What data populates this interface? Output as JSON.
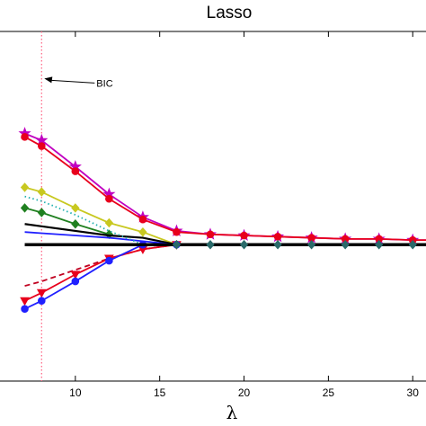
{
  "chart_data": {
    "type": "line",
    "title": "Lasso",
    "xlabel": "λ",
    "ylabel": "",
    "xlim": [
      5,
      31
    ],
    "ylim": [
      -1.25,
      1.8
    ],
    "xticks": [
      10,
      15,
      20,
      25,
      30
    ],
    "xtick_labels": [
      "10",
      "15",
      "20",
      "25",
      "30"
    ],
    "grid": false,
    "annotations": [
      {
        "text": "BIC",
        "x": 8,
        "y": 1.35,
        "arrow": true
      }
    ],
    "vline": {
      "x": 8,
      "color": "#ff6a8a",
      "style": "dotted",
      "label_ref": "BIC"
    },
    "series": [
      {
        "color": "#c000c0",
        "marker": "star",
        "style": "solid",
        "x": [
          7,
          8,
          10,
          12,
          14,
          16,
          18,
          20,
          22,
          24,
          26,
          28,
          30,
          31
        ],
        "y": [
          0.91,
          0.85,
          0.62,
          0.38,
          0.18,
          0.06,
          0.03,
          0.02,
          0.01,
          0.0,
          -0.01,
          -0.01,
          -0.02,
          -0.02
        ]
      },
      {
        "color": "#e8001c",
        "marker": "circle",
        "style": "solid",
        "x": [
          7,
          8,
          10,
          12,
          14,
          16,
          18,
          20,
          22,
          24,
          26,
          28,
          30,
          31
        ],
        "y": [
          0.88,
          0.8,
          0.58,
          0.34,
          0.16,
          0.05,
          0.03,
          0.02,
          0.01,
          0.0,
          -0.01,
          -0.01,
          -0.02,
          -0.02
        ]
      },
      {
        "color": "#c8c820",
        "marker": "diamond",
        "style": "solid",
        "x": [
          7,
          8,
          10,
          12,
          14,
          16
        ],
        "y": [
          0.44,
          0.4,
          0.26,
          0.13,
          0.05,
          -0.06
        ]
      },
      {
        "color": "#208020",
        "marker": "diamond",
        "style": "solid",
        "x": [
          7,
          8,
          10,
          12
        ],
        "y": [
          0.26,
          0.22,
          0.12,
          0.03
        ]
      },
      {
        "color": "#000000",
        "marker": "none",
        "style": "solid",
        "width": 2.2,
        "x": [
          7,
          8,
          10,
          12,
          14,
          16
        ],
        "y": [
          0.12,
          0.1,
          0.06,
          0.02,
          0.0,
          -0.06
        ]
      },
      {
        "color": "#2020ff",
        "marker": "none",
        "style": "solid",
        "x": [
          7,
          8,
          10,
          12,
          14,
          16
        ],
        "y": [
          0.05,
          0.04,
          0.02,
          0.0,
          -0.03,
          -0.06
        ]
      },
      {
        "color": "#20b0b0",
        "marker": "none",
        "style": "dotted",
        "x": [
          7,
          8,
          10,
          12,
          14
        ],
        "y": [
          0.36,
          0.32,
          0.2,
          0.06,
          -0.06
        ]
      },
      {
        "color": "#c00020",
        "marker": "none",
        "style": "dashed",
        "x": [
          7,
          8,
          10,
          12,
          14,
          16
        ],
        "y": [
          -0.42,
          -0.38,
          -0.28,
          -0.18,
          -0.1,
          -0.06
        ]
      },
      {
        "color": "#e8001c",
        "marker": "triangle-down",
        "style": "solid",
        "x": [
          7,
          8,
          10,
          12,
          14,
          16
        ],
        "y": [
          -0.55,
          -0.48,
          -0.32,
          -0.18,
          -0.1,
          -0.06
        ]
      },
      {
        "color": "#2020ff",
        "marker": "circle",
        "style": "solid",
        "x": [
          7,
          8,
          10,
          12,
          14,
          16
        ],
        "y": [
          -0.62,
          -0.55,
          -0.38,
          -0.2,
          -0.06,
          -0.06
        ]
      },
      {
        "color": "#000000",
        "marker": "none",
        "style": "solid",
        "width": 3.5,
        "x": [
          7,
          31
        ],
        "y": [
          -0.06,
          -0.06
        ]
      },
      {
        "color": "#2a6a6a",
        "marker": "diamond",
        "style": "none",
        "x": [
          16,
          18,
          20,
          22,
          24,
          26,
          28,
          30
        ],
        "y": [
          -0.06,
          -0.06,
          -0.06,
          -0.06,
          -0.06,
          -0.06,
          -0.06,
          -0.06
        ]
      }
    ]
  }
}
